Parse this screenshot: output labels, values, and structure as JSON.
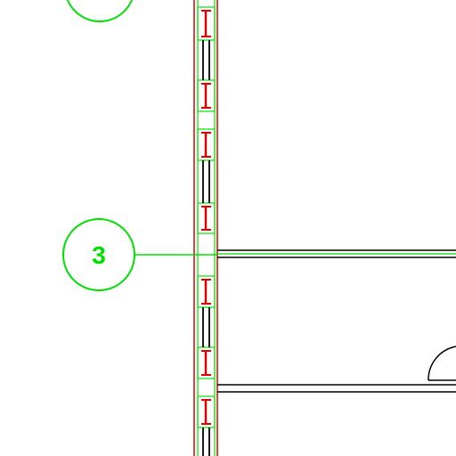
{
  "drawing": {
    "grid_marker": {
      "label": "3"
    },
    "colors": {
      "background": "#ffffff",
      "annotation": "#00e000",
      "structure": "#e00000",
      "linework": "#000000"
    }
  }
}
